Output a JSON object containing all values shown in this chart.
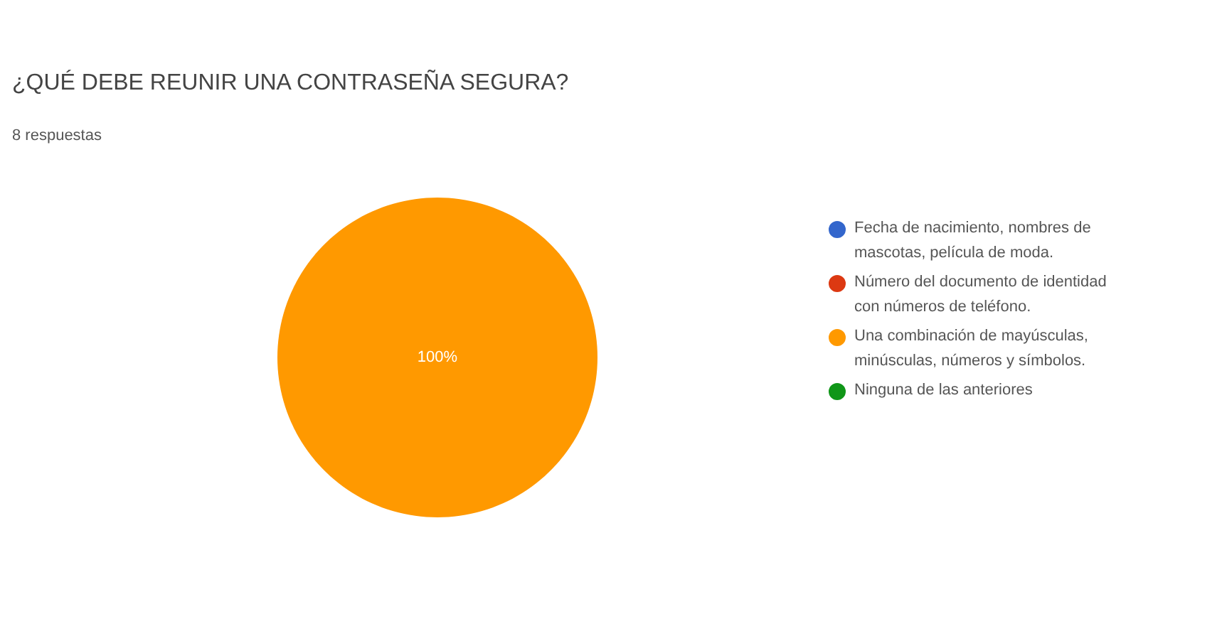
{
  "chart_data": {
    "type": "pie",
    "title": "¿QUÉ DEBE REUNIR UNA CONTRASEÑA SEGURA?",
    "subtitle": "8 respuestas",
    "categories": [
      "Fecha de nacimiento, nombres de mascotas, película de moda.",
      "Número del documento de identidad con números de teléfono.",
      "Una combinación de mayúsculas, minúsculas, números y símbolos.",
      "Ninguna de las anteriores"
    ],
    "values": [
      0,
      0,
      100,
      0
    ],
    "colors": [
      "#3366cc",
      "#dc3912",
      "#ff9900",
      "#109618"
    ],
    "value_labels": [
      null,
      null,
      "100%",
      null
    ],
    "legend": "right"
  }
}
